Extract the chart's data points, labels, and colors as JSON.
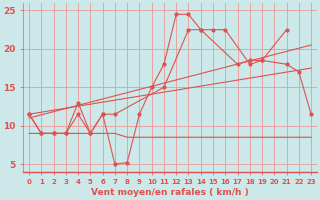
{
  "xlabel": "Vent moyen/en rafales ( km/h )",
  "bg_color": "#cce8e8",
  "grid_color": "#e89898",
  "line_color": "#e05050",
  "x_values": [
    0,
    1,
    2,
    3,
    4,
    5,
    6,
    7,
    8,
    9,
    10,
    11,
    12,
    13,
    14,
    15,
    16,
    17,
    18,
    19,
    20,
    21,
    22,
    23
  ],
  "line1_x": [
    0,
    1,
    2,
    3,
    4,
    5,
    6,
    7,
    8,
    9,
    10,
    11,
    12,
    13,
    14,
    15,
    16,
    18,
    19,
    21
  ],
  "line1_y": [
    11.5,
    9.0,
    9.0,
    9.0,
    13.0,
    9.0,
    11.5,
    5.0,
    5.2,
    11.5,
    15.0,
    18.0,
    24.5,
    24.5,
    22.5,
    22.5,
    22.5,
    18.0,
    18.5,
    22.5
  ],
  "line2_x": [
    0,
    1,
    2,
    3,
    4,
    5,
    6,
    7,
    11,
    13,
    14,
    17,
    18,
    19,
    21,
    22,
    23
  ],
  "line2_y": [
    11.5,
    9.0,
    9.0,
    9.0,
    11.5,
    9.0,
    11.5,
    11.5,
    15.0,
    22.5,
    22.5,
    18.0,
    18.5,
    18.5,
    18.0,
    17.0,
    11.5
  ],
  "line3_x": [
    0,
    1,
    2,
    3,
    4,
    5,
    6,
    7,
    8,
    9,
    10,
    11,
    12,
    13,
    14,
    15,
    16,
    17,
    18,
    19,
    20,
    21,
    22,
    23
  ],
  "line3_y": [
    9.0,
    9.0,
    9.0,
    9.0,
    9.0,
    9.0,
    9.0,
    9.0,
    8.5,
    8.5,
    8.5,
    8.5,
    8.5,
    8.5,
    8.5,
    8.5,
    8.5,
    8.5,
    8.5,
    8.5,
    8.5,
    8.5,
    8.5,
    8.5
  ],
  "trend1_x": [
    0,
    23
  ],
  "trend1_y": [
    11.0,
    20.5
  ],
  "trend2_x": [
    0,
    23
  ],
  "trend2_y": [
    11.5,
    17.5
  ],
  "ylim": [
    4,
    26
  ],
  "xlim": [
    -0.5,
    23.5
  ],
  "yticks": [
    5,
    10,
    15,
    20,
    25
  ],
  "xticks": [
    0,
    1,
    2,
    3,
    4,
    5,
    6,
    7,
    8,
    9,
    10,
    11,
    12,
    13,
    14,
    15,
    16,
    17,
    18,
    19,
    20,
    21,
    22,
    23
  ],
  "xlabel_fontsize": 6.5,
  "tick_fontsize_x": 5.0,
  "tick_fontsize_y": 6.5
}
